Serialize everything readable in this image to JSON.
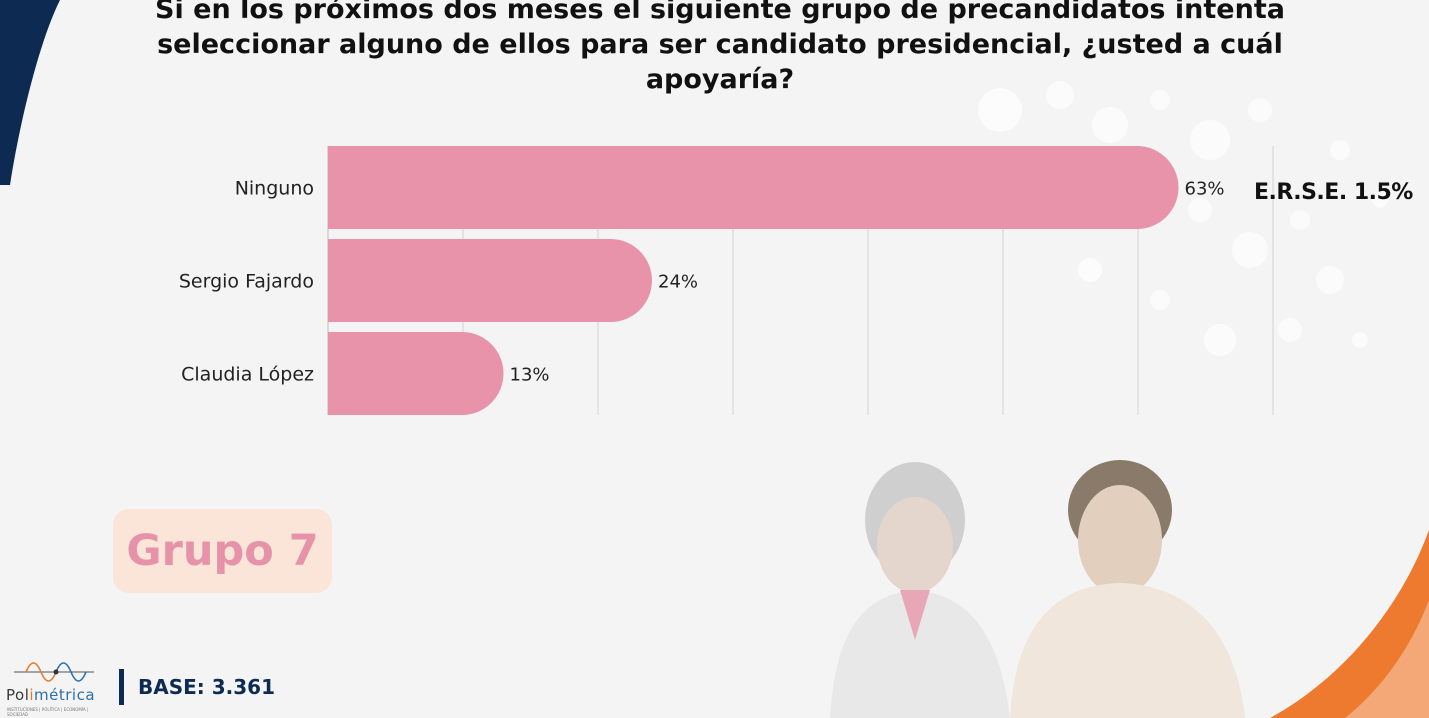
{
  "chart_data": {
    "type": "bar",
    "orientation": "horizontal",
    "title": "Si en los próximos dos meses el siguiente grupo de precandidatos intenta seleccionar alguno de ellos para ser candidato presidencial, ¿usted a cuál apoyaría?",
    "categories": [
      "Ninguno",
      "Sergio Fajardo",
      "Claudia López"
    ],
    "values": [
      63,
      24,
      13
    ],
    "value_labels": [
      "63%",
      "24%",
      "13%"
    ],
    "xlim": [
      0,
      70
    ],
    "grid": true,
    "bar_color": "#e893a9"
  },
  "erse": "E.R.S.E. 1.5%",
  "group_label": "Grupo 7",
  "base_label": "BASE: 3.361",
  "logo": {
    "name_a": "Pol",
    "name_b": "i",
    "name_c": "métrica",
    "tagline": "INSTITUCIONES | POLÍTICA | ECONOMÍA | SOCIEDAD"
  },
  "colors": {
    "navy": "#0d2a52",
    "orange": "#ee7a2f",
    "pink_text": "#e693a9",
    "pink_box": "#fbe4d8"
  }
}
